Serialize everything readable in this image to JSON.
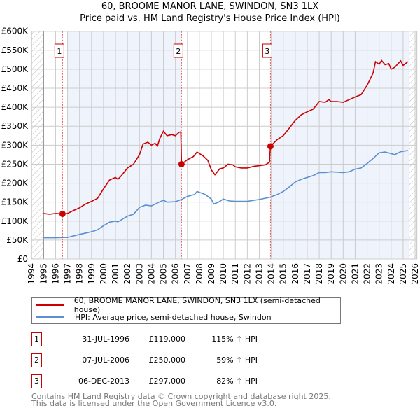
{
  "title_line1": "60, BROOME MANOR LANE, SWINDON, SN3 1LX",
  "title_line2": "Price paid vs. HM Land Registry's House Price Index (HPI)",
  "colors": {
    "property": "#cc0000",
    "hpi": "#5b8fd0",
    "shade": "#eef3fc"
  },
  "chart_data": {
    "type": "line",
    "xlim": [
      1994,
      2026
    ],
    "ylim": [
      0,
      600000
    ],
    "x_ticks": [
      "1994",
      "1995",
      "1996",
      "1997",
      "1998",
      "1999",
      "2000",
      "2001",
      "2002",
      "2003",
      "2004",
      "2005",
      "2006",
      "2007",
      "2008",
      "2009",
      "2010",
      "2011",
      "2012",
      "2013",
      "2014",
      "2015",
      "2016",
      "2017",
      "2018",
      "2019",
      "2020",
      "2021",
      "2022",
      "2023",
      "2024",
      "2025",
      "2026"
    ],
    "y_ticks": [
      {
        "v": 0,
        "label": "£0"
      },
      {
        "v": 50000,
        "label": "£50K"
      },
      {
        "v": 100000,
        "label": "£100K"
      },
      {
        "v": 150000,
        "label": "£150K"
      },
      {
        "v": 200000,
        "label": "£200K"
      },
      {
        "v": 250000,
        "label": "£250K"
      },
      {
        "v": 300000,
        "label": "£300K"
      },
      {
        "v": 350000,
        "label": "£350K"
      },
      {
        "v": 400000,
        "label": "£400K"
      },
      {
        "v": 450000,
        "label": "£450K"
      },
      {
        "v": 500000,
        "label": "£500K"
      },
      {
        "v": 550000,
        "label": "£550K"
      },
      {
        "v": 600000,
        "label": "£600K"
      }
    ],
    "grid": true,
    "shaded_ranges": [
      [
        1997.0,
        2006.51
      ],
      [
        2013.93,
        2025.5
      ]
    ],
    "hatched_ranges": [
      [
        1994,
        1995
      ],
      [
        2025.5,
        2026.2
      ]
    ],
    "series": [
      {
        "name": "60, BROOME MANOR LANE, SWINDON, SN3 1LX (semi-detached house)",
        "color": "#cc0000",
        "x": [
          1995,
          1995.5,
          1996,
          1996.58,
          1997,
          1997.5,
          1998,
          1998.5,
          1999,
          1999.5,
          2000,
          2000.5,
          2001,
          2001.2,
          2001.5,
          2002,
          2002.5,
          2003,
          2003.3,
          2003.7,
          2004,
          2004.3,
          2004.5,
          2004.7,
          2005,
          2005.3,
          2005.7,
          2006,
          2006.3,
          2006.45,
          2006.51,
          2007,
          2007.5,
          2007.8,
          2008.3,
          2008.7,
          2009,
          2009.3,
          2009.7,
          2010,
          2010.4,
          2010.8,
          2011,
          2011.5,
          2012,
          2012.5,
          2013,
          2013.5,
          2013.85,
          2013.93,
          2014.5,
          2015,
          2015.5,
          2016,
          2016.5,
          2017,
          2017.5,
          2018,
          2018.5,
          2018.8,
          2019,
          2019.5,
          2020,
          2020.5,
          2021,
          2021.5,
          2022,
          2022.5,
          2022.7,
          2023,
          2023.2,
          2023.5,
          2023.8,
          2024,
          2024.3,
          2024.8,
          2025,
          2025.4
        ],
        "y": [
          120000,
          118000,
          120000,
          119000,
          120000,
          128000,
          135000,
          145000,
          152000,
          160000,
          185000,
          208000,
          215000,
          210000,
          220000,
          240000,
          250000,
          275000,
          303000,
          308000,
          300000,
          305000,
          298000,
          318000,
          337000,
          325000,
          328000,
          325000,
          334000,
          335000,
          250000,
          262000,
          270000,
          282000,
          272000,
          260000,
          235000,
          222000,
          238000,
          240000,
          250000,
          248000,
          243000,
          240000,
          240000,
          244000,
          246000,
          248000,
          255000,
          297000,
          315000,
          325000,
          345000,
          365000,
          380000,
          388000,
          395000,
          415000,
          413000,
          420000,
          415000,
          415000,
          413000,
          420000,
          427000,
          433000,
          458000,
          490000,
          520000,
          513000,
          523000,
          512000,
          515000,
          500000,
          505000,
          522000,
          510000,
          520000
        ]
      },
      {
        "name": "HPI: Average price, semi-detached house, Swindon",
        "color": "#5b8fd0",
        "x": [
          1995,
          1996,
          1997,
          1998,
          1999,
          1999.5,
          2000,
          2000.5,
          2001,
          2001.2,
          2002,
          2002.5,
          2003,
          2003.5,
          2004,
          2004.5,
          2005,
          2005.3,
          2006,
          2006.5,
          2007,
          2007.6,
          2007.8,
          2008.5,
          2009,
          2009.2,
          2009.6,
          2010,
          2010.5,
          2011,
          2012,
          2013,
          2013.9,
          2014.5,
          2015,
          2015.5,
          2016,
          2016.5,
          2017,
          2017.5,
          2018,
          2018.5,
          2019,
          2020,
          2020.5,
          2021,
          2021.5,
          2022,
          2022.5,
          2023,
          2023.5,
          2024,
          2024.3,
          2024.8,
          2025.4
        ],
        "y": [
          56000,
          56000,
          57000,
          65000,
          72000,
          77000,
          88000,
          97000,
          100000,
          98000,
          113000,
          118000,
          136000,
          142000,
          140000,
          148000,
          155000,
          150000,
          151000,
          157000,
          165000,
          170000,
          178000,
          170000,
          158000,
          145000,
          150000,
          158000,
          153000,
          152000,
          152000,
          157000,
          163000,
          170000,
          178000,
          190000,
          203000,
          210000,
          215000,
          220000,
          228000,
          228000,
          230000,
          228000,
          230000,
          237000,
          240000,
          252000,
          265000,
          280000,
          282000,
          278000,
          275000,
          283000,
          286000
        ]
      }
    ],
    "sales": [
      {
        "label": "1",
        "x": 1996.58,
        "y": 119000
      },
      {
        "label": "2",
        "x": 2006.51,
        "y": 250000
      },
      {
        "label": "3",
        "x": 2013.93,
        "y": 297000
      }
    ]
  },
  "legend": {
    "property": "60, BROOME MANOR LANE, SWINDON, SN3 1LX (semi-detached house)",
    "hpi": "HPI: Average price, semi-detached house, Swindon"
  },
  "transactions": [
    {
      "num": "1",
      "date": "31-JUL-1996",
      "price": "£119,000",
      "hpi": "115% ↑ HPI"
    },
    {
      "num": "2",
      "date": "07-JUL-2006",
      "price": "£250,000",
      "hpi": "59% ↑ HPI"
    },
    {
      "num": "3",
      "date": "06-DEC-2013",
      "price": "£297,000",
      "hpi": "82% ↑ HPI"
    }
  ],
  "footer_line1": "Contains HM Land Registry data © Crown copyright and database right 2025.",
  "footer_line2": "This data is licensed under the Open Government Licence v3.0."
}
